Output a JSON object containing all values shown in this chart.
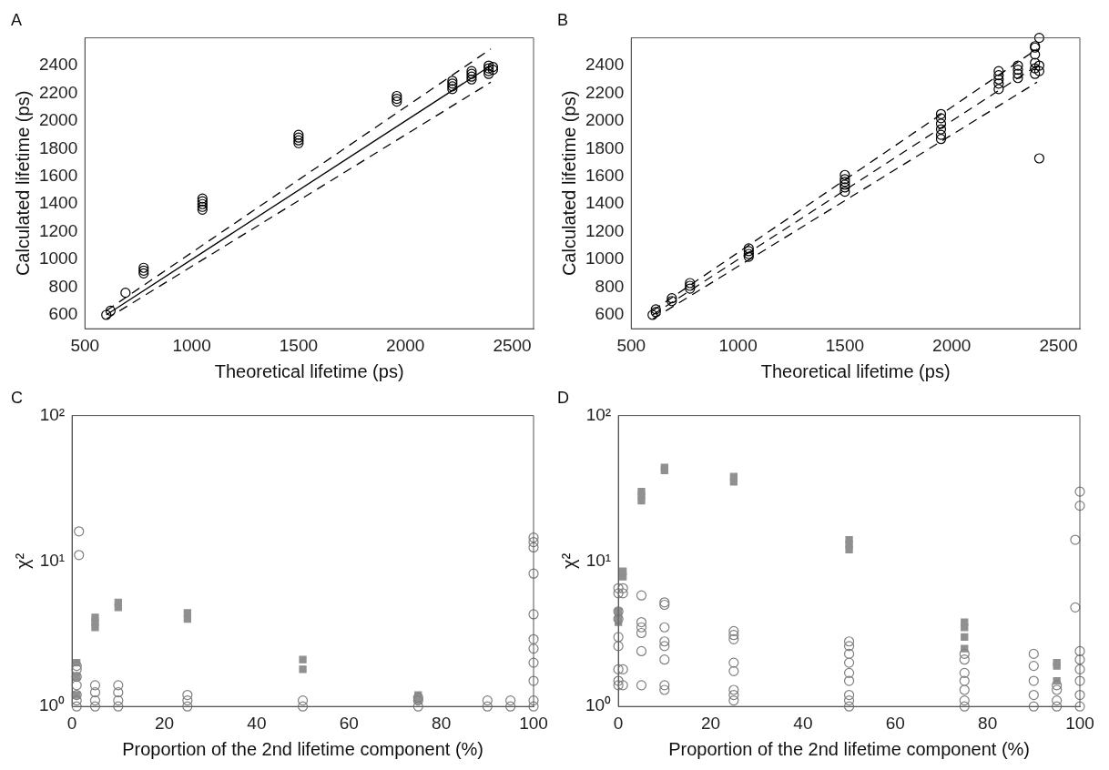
{
  "chart_data": [
    {
      "type": "scatter",
      "title": "A",
      "xlabel": "Theoretical lifetime (ps)",
      "ylabel": "Calculated lifetime (ps)",
      "xlim": [
        500,
        2600
      ],
      "ylim": [
        500,
        2600
      ],
      "xticks": [
        500,
        1000,
        1500,
        2000,
        2500
      ],
      "yticks": [
        600,
        800,
        1000,
        1200,
        1400,
        1600,
        1800,
        2000,
        2200,
        2400
      ],
      "series": [
        {
          "type": "scatter",
          "color": "#000000",
          "marker": "circle",
          "x": [
            600,
            620,
            690,
            775,
            775,
            775,
            1050,
            1050,
            1050,
            1050,
            1050,
            1500,
            1500,
            1500,
            1500,
            1960,
            1960,
            1960,
            2220,
            2220,
            2220,
            2220,
            2310,
            2310,
            2310,
            2310,
            2390,
            2390,
            2390,
            2390,
            2410,
            2410
          ],
          "values": [
            600,
            630,
            760,
            900,
            920,
            940,
            1360,
            1380,
            1400,
            1420,
            1440,
            1840,
            1860,
            1880,
            1900,
            2140,
            2160,
            2180,
            2230,
            2250,
            2270,
            2290,
            2300,
            2320,
            2340,
            2360,
            2340,
            2360,
            2380,
            2400,
            2370,
            2390
          ]
        },
        {
          "type": "line",
          "color": "#000000",
          "marker": "none",
          "line_style": "solid",
          "x": [
            600,
            2400
          ],
          "values": [
            600,
            2400
          ]
        },
        {
          "type": "line",
          "color": "#000000",
          "marker": "none",
          "line_style": "dashed",
          "x": [
            600,
            2400
          ],
          "values": [
            630,
            2520
          ]
        },
        {
          "type": "line",
          "color": "#000000",
          "marker": "none",
          "line_style": "dashed",
          "x": [
            600,
            2400
          ],
          "values": [
            570,
            2280
          ]
        }
      ]
    },
    {
      "type": "scatter",
      "title": "B",
      "xlabel": "Theoretical lifetime (ps)",
      "ylabel": "Calculated lifetime (ps)",
      "xlim": [
        500,
        2600
      ],
      "ylim": [
        500,
        2600
      ],
      "xticks": [
        500,
        1000,
        1500,
        2000,
        2500
      ],
      "yticks": [
        600,
        800,
        1000,
        1200,
        1400,
        1600,
        1800,
        2000,
        2200,
        2400
      ],
      "series": [
        {
          "type": "scatter",
          "color": "#000000",
          "marker": "circle",
          "x": [
            600,
            615,
            615,
            690,
            690,
            775,
            775,
            775,
            1050,
            1050,
            1050,
            1050,
            1500,
            1500,
            1500,
            1500,
            1500,
            1500,
            1950,
            1950,
            1950,
            1950,
            1950,
            1950,
            2220,
            2220,
            2220,
            2220,
            2220,
            2310,
            2310,
            2310,
            2310,
            2390,
            2390,
            2390,
            2390,
            2390,
            2390,
            2410,
            2410,
            2410,
            2410
          ],
          "values": [
            600,
            620,
            640,
            700,
            720,
            790,
            810,
            830,
            1020,
            1040,
            1060,
            1080,
            1490,
            1520,
            1540,
            1560,
            1580,
            1610,
            1870,
            1900,
            1940,
            1980,
            2020,
            2050,
            2230,
            2270,
            2300,
            2330,
            2360,
            2310,
            2340,
            2370,
            2400,
            2340,
            2380,
            2420,
            2480,
            2530,
            2540,
            2600,
            1730,
            2360,
            2400
          ]
        },
        {
          "type": "line",
          "color": "#000000",
          "marker": "none",
          "line_style": "dashed",
          "x": [
            600,
            2400
          ],
          "values": [
            600,
            2400
          ]
        },
        {
          "type": "line",
          "color": "#000000",
          "marker": "none",
          "line_style": "dashed",
          "x": [
            600,
            2400
          ],
          "values": [
            630,
            2520
          ]
        },
        {
          "type": "line",
          "color": "#000000",
          "marker": "none",
          "line_style": "dashed",
          "x": [
            600,
            2400
          ],
          "values": [
            570,
            2280
          ]
        }
      ]
    },
    {
      "type": "scatter",
      "title": "C",
      "xlabel": "Proportion of the 2nd lifetime component (%)",
      "ylabel": "χ²",
      "log": "y",
      "xlim": [
        0,
        100
      ],
      "ylim": [
        1,
        100
      ],
      "xticks": [
        0,
        20,
        40,
        60,
        80,
        100
      ],
      "yticks": [
        {
          "value": 1,
          "label": "10⁰"
        },
        {
          "value": 10,
          "label": "10¹"
        },
        {
          "value": 100,
          "label": "10²"
        }
      ],
      "series": [
        {
          "type": "scatter",
          "color": "#808080",
          "marker": "circle",
          "x": [
            1,
            1,
            1,
            1,
            1,
            1,
            1,
            1.5,
            1.5,
            5,
            5,
            5,
            5,
            10,
            10,
            10,
            10,
            25,
            25,
            25,
            50,
            50,
            75,
            75,
            75,
            90,
            90,
            95,
            95,
            100,
            100,
            100,
            100,
            100,
            100,
            100,
            100,
            100,
            100,
            100
          ],
          "values": [
            1.0,
            1.1,
            1.2,
            1.4,
            1.6,
            1.8,
            1.9,
            16,
            11,
            1.0,
            1.1,
            1.25,
            1.4,
            1.0,
            1.1,
            1.25,
            1.4,
            1.0,
            1.1,
            1.2,
            1.0,
            1.1,
            1.0,
            1.1,
            1.15,
            1.0,
            1.1,
            1.0,
            1.1,
            14.5,
            12.4,
            8.2,
            4.3,
            2.9,
            2.5,
            2.0,
            1.5,
            1.1,
            1.0,
            13.5
          ]
        },
        {
          "type": "scatter",
          "color": "#909090",
          "marker": "square",
          "x": [
            1,
            1,
            1,
            5,
            5,
            5,
            10,
            10,
            25,
            25,
            50,
            50,
            75,
            75
          ],
          "values": [
            1.2,
            1.6,
            2.0,
            3.5,
            3.8,
            4.1,
            4.8,
            5.2,
            4.0,
            4.4,
            1.8,
            2.1,
            1.1,
            1.2
          ]
        }
      ]
    },
    {
      "type": "scatter",
      "title": "D",
      "xlabel": "Proportion of the 2nd lifetime component (%)",
      "ylabel": "χ²",
      "log": "y",
      "xlim": [
        0,
        100
      ],
      "ylim": [
        1,
        100
      ],
      "xticks": [
        0,
        20,
        40,
        60,
        80,
        100
      ],
      "yticks": [
        {
          "value": 1,
          "label": "10⁰"
        },
        {
          "value": 10,
          "label": "10¹"
        },
        {
          "value": 100,
          "label": "10²"
        }
      ],
      "series": [
        {
          "type": "scatter",
          "color": "#808080",
          "marker": "circle",
          "x": [
            0,
            0,
            0,
            0,
            0,
            0,
            0,
            0,
            0,
            1,
            1,
            1,
            1,
            5,
            5,
            5,
            5,
            5,
            5,
            10,
            10,
            10,
            10,
            10,
            10,
            10,
            10,
            25,
            25,
            25,
            25,
            25,
            25,
            25,
            25,
            50,
            50,
            50,
            50,
            50,
            50,
            50,
            50,
            50,
            75,
            75,
            75,
            75,
            75,
            75,
            75,
            90,
            90,
            90,
            90,
            90,
            95,
            95,
            95,
            95,
            100,
            100,
            100,
            100,
            100,
            100,
            99,
            99,
            100,
            100
          ],
          "values": [
            1.4,
            1.5,
            1.8,
            2.6,
            3.0,
            4.0,
            4.5,
            6.0,
            6.5,
            1.4,
            1.8,
            6.0,
            6.5,
            1.4,
            2.4,
            3.2,
            3.5,
            3.8,
            5.8,
            1.3,
            1.4,
            2.1,
            2.6,
            2.8,
            3.5,
            5.0,
            5.2,
            1.1,
            1.2,
            1.3,
            1.75,
            2.0,
            2.9,
            3.1,
            3.3,
            1.0,
            1.1,
            1.2,
            1.5,
            1.7,
            2.0,
            2.3,
            2.6,
            2.8,
            1.0,
            1.1,
            1.3,
            1.5,
            1.7,
            2.1,
            2.3,
            1.0,
            1.2,
            1.5,
            1.9,
            2.3,
            1.0,
            1.1,
            1.3,
            1.4,
            1.0,
            1.2,
            1.5,
            1.8,
            2.1,
            2.4,
            4.8,
            14,
            24,
            30
          ]
        },
        {
          "type": "scatter",
          "color": "#909090",
          "marker": "square",
          "x": [
            0,
            0,
            0,
            1,
            1,
            5,
            5,
            5,
            10,
            10,
            25,
            25,
            50,
            50,
            50,
            75,
            75,
            75,
            75,
            95,
            95,
            95
          ],
          "values": [
            3.8,
            4.2,
            4.5,
            7.8,
            8.5,
            26,
            28,
            30,
            42,
            44,
            35,
            38,
            12,
            13,
            14,
            2.5,
            3.0,
            3.5,
            3.8,
            1.5,
            1.9,
            2.0
          ]
        }
      ]
    }
  ]
}
